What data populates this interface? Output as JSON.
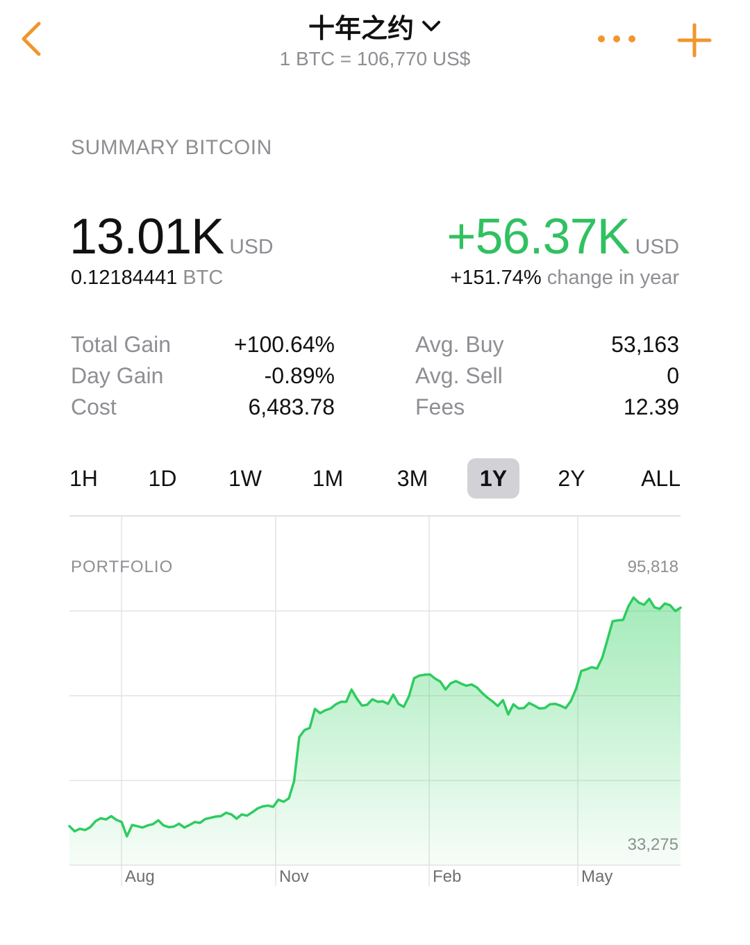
{
  "header": {
    "title": "十年之约",
    "price_line": "1 BTC = 106,770 US$",
    "accent_color": "#f0962e",
    "icons": {
      "back": "chevron-left-icon",
      "title_dropdown": "chevron-down-icon",
      "more": "ellipsis-icon",
      "add": "plus-icon"
    }
  },
  "summary": {
    "section_title": "SUMMARY BITCOIN",
    "value": "13.01K",
    "value_unit": "USD",
    "btc_amount": "0.12184441",
    "btc_unit": "BTC",
    "year_gain": "+56.37K",
    "year_gain_unit": "USD",
    "year_change_pct": "+151.74%",
    "year_change_label": "change in year",
    "positive_color": "#30c160"
  },
  "stats": {
    "left": [
      {
        "label": "Total Gain",
        "value": "+100.64%"
      },
      {
        "label": "Day Gain",
        "value": "-0.89%"
      },
      {
        "label": "Cost",
        "value": "6,483.78"
      }
    ],
    "right": [
      {
        "label": "Avg. Buy",
        "value": "53,163"
      },
      {
        "label": "Avg. Sell",
        "value": "0"
      },
      {
        "label": "Fees",
        "value": "12.39"
      }
    ]
  },
  "ranges": {
    "items": [
      "1H",
      "1D",
      "1W",
      "1M",
      "3M",
      "1Y",
      "2Y",
      "ALL"
    ],
    "selected": "1Y"
  },
  "chart_data": {
    "type": "area",
    "title": "PORTFOLIO",
    "y_max_label": "95,818",
    "y_min_label": "33,275",
    "ylim": [
      33275,
      95818
    ],
    "x_tick_labels": [
      "Aug",
      "Nov",
      "Feb",
      "May"
    ],
    "grid": true,
    "line_color": "#2ecc60",
    "series": [
      {
        "values": [
          37400,
          36200,
          36800,
          36500,
          37200,
          38600,
          39300,
          39000,
          39800,
          38900,
          38400,
          35000,
          37700,
          37400,
          37100,
          37600,
          37900,
          38800,
          37600,
          37200,
          37300,
          38000,
          37100,
          37700,
          38400,
          38200,
          39100,
          39400,
          39700,
          39800,
          40600,
          40200,
          39200,
          40200,
          39900,
          40700,
          41600,
          42100,
          42300,
          42000,
          43700,
          43200,
          44000,
          48000,
          58500,
          60200,
          60700,
          65200,
          64200,
          64900,
          65300,
          66300,
          66900,
          66900,
          69800,
          67700,
          66000,
          66200,
          67500,
          66900,
          67000,
          66400,
          68600,
          66400,
          65700,
          68200,
          72500,
          73100,
          73300,
          73400,
          72400,
          71700,
          69800,
          71300,
          71800,
          71200,
          70700,
          71000,
          70300,
          69000,
          67900,
          67000,
          65900,
          67300,
          63900,
          66300,
          65300,
          65400,
          66600,
          66000,
          65300,
          65400,
          66300,
          66400,
          66000,
          65400,
          67100,
          70000,
          74200,
          74600,
          75100,
          74800,
          77300,
          81600,
          86000,
          86200,
          86300,
          89500,
          91600,
          90400,
          89900,
          91300,
          89300,
          88900,
          90200,
          89800,
          88400,
          89200
        ]
      }
    ]
  }
}
